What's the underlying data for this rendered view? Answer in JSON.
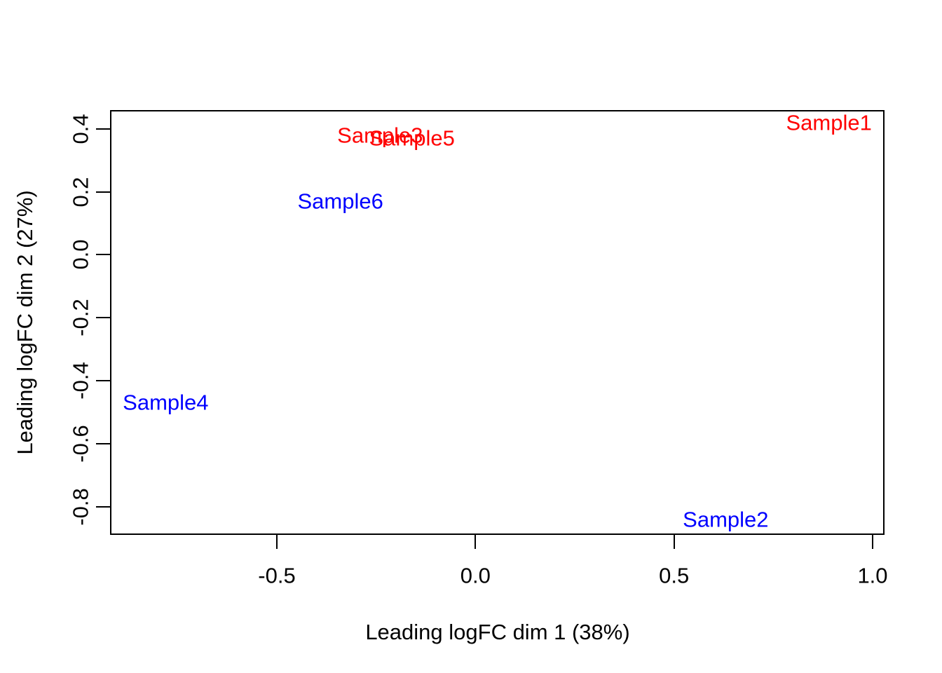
{
  "chart_data": {
    "type": "scatter",
    "title": "",
    "xlabel": "Leading logFC dim 1 (38%)",
    "ylabel": "Leading logFC dim 2 (27%)",
    "xlim": [
      -0.92,
      1.03
    ],
    "ylim": [
      -0.89,
      0.46
    ],
    "grid": false,
    "legend_position": "none",
    "point_style": "text-labels",
    "x_ticks": [
      {
        "value": -0.5,
        "label": "-0.5"
      },
      {
        "value": 0.0,
        "label": "0.0"
      },
      {
        "value": 0.5,
        "label": "0.5"
      },
      {
        "value": 1.0,
        "label": "1.0"
      }
    ],
    "y_ticks": [
      {
        "value": -0.8,
        "label": "-0.8"
      },
      {
        "value": -0.6,
        "label": "-0.6"
      },
      {
        "value": -0.4,
        "label": "-0.4"
      },
      {
        "value": -0.2,
        "label": "-0.2"
      },
      {
        "value": 0.0,
        "label": "0.0"
      },
      {
        "value": 0.2,
        "label": "0.2"
      },
      {
        "value": 0.4,
        "label": "0.4"
      }
    ],
    "points": [
      {
        "label": "Sample1",
        "x": 0.89,
        "y": 0.42,
        "color": "#FF0000"
      },
      {
        "label": "Sample2",
        "x": 0.63,
        "y": -0.84,
        "color": "#0000FF"
      },
      {
        "label": "Sample3",
        "x": -0.24,
        "y": 0.38,
        "color": "#FF0000"
      },
      {
        "label": "Sample4",
        "x": -0.78,
        "y": -0.47,
        "color": "#0000FF"
      },
      {
        "label": "Sample5",
        "x": -0.16,
        "y": 0.37,
        "color": "#FF0000"
      },
      {
        "label": "Sample6",
        "x": -0.34,
        "y": 0.17,
        "color": "#0000FF"
      }
    ]
  },
  "colors": {
    "background": "#FFFFFF",
    "axis": "#000000",
    "group_red": "#FF0000",
    "group_blue": "#0000FF"
  }
}
